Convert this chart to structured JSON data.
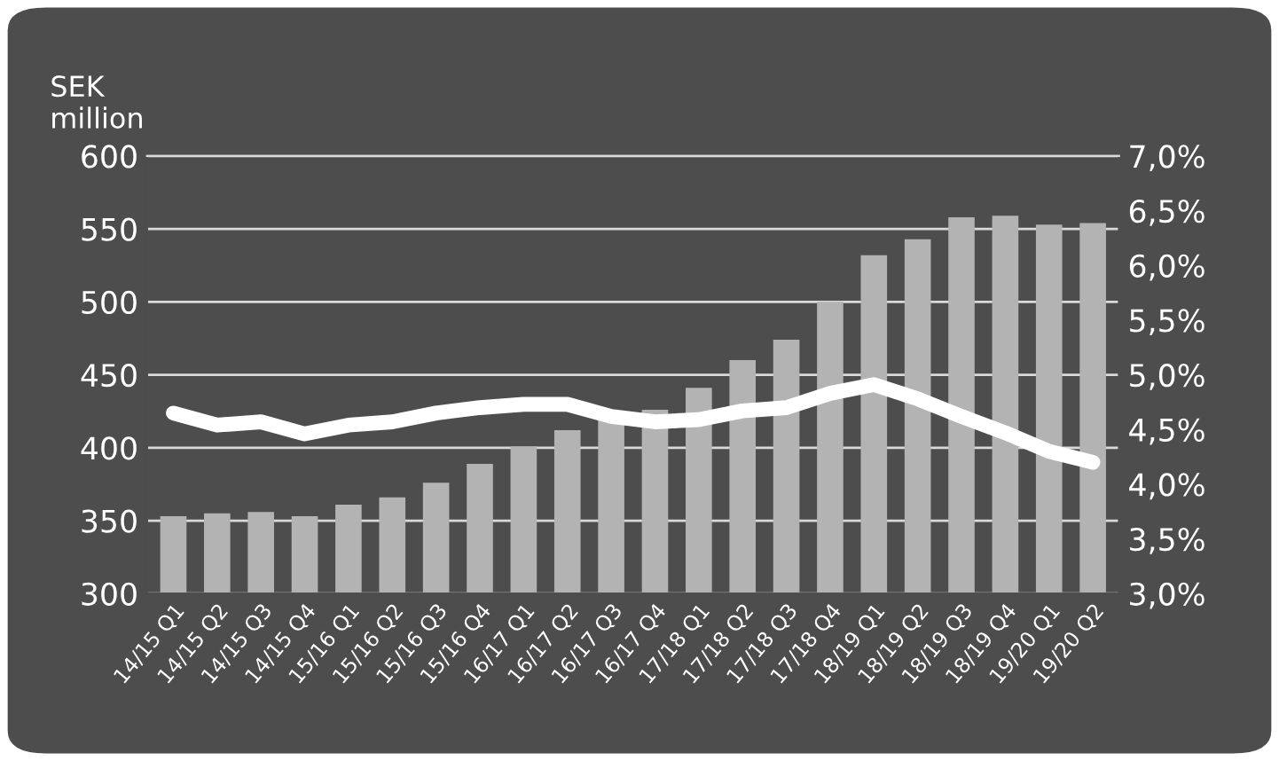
{
  "chart_data": {
    "type": "bar",
    "ylabel": "SEK\nmillion",
    "categories": [
      "14/15 Q1",
      "14/15 Q2",
      "14/15 Q3",
      "14/15 Q4",
      "15/16 Q1",
      "15/16 Q2",
      "15/16 Q3",
      "15/16 Q4",
      "16/17 Q1",
      "16/17 Q2",
      "16/17 Q3",
      "16/17 Q4",
      "17/18 Q1",
      "17/18 Q2",
      "17/18 Q3",
      "17/18 Q4",
      "18/19 Q1",
      "18/19 Q2",
      "18/19 Q3",
      "18/19 Q4",
      "19/20 Q1",
      "19/20 Q2"
    ],
    "series": [
      {
        "color": "#b3b3b3",
        "values": [
          353,
          355,
          356,
          353,
          361,
          366,
          376,
          389,
          401,
          412,
          420,
          426,
          441,
          460,
          474,
          500,
          532,
          543,
          558,
          559,
          553,
          554
        ]
      },
      {
        "type": "line",
        "axis": "y2",
        "color": "#ffffff",
        "values": [
          4.65,
          4.54,
          4.57,
          4.46,
          4.54,
          4.57,
          4.65,
          4.7,
          4.73,
          4.73,
          4.62,
          4.57,
          4.59,
          4.67,
          4.7,
          4.83,
          4.91,
          4.78,
          4.62,
          4.47,
          4.3,
          4.2
        ]
      }
    ],
    "ylim": [
      300,
      600
    ],
    "yticks": [
      300,
      350,
      400,
      450,
      500,
      550,
      600
    ],
    "y2lim": [
      3.0,
      7.0
    ],
    "y2ticks": [
      {
        "value": 3.0,
        "label": "3,0%"
      },
      {
        "value": 3.5,
        "label": "3,5%"
      },
      {
        "value": 4.0,
        "label": "4,0%"
      },
      {
        "value": 4.5,
        "label": "4,5%"
      },
      {
        "value": 5.0,
        "label": "5,0%"
      },
      {
        "value": 5.5,
        "label": "5,5%"
      },
      {
        "value": 6.0,
        "label": "6,0%"
      },
      {
        "value": 6.5,
        "label": "6,5%"
      },
      {
        "value": 7.0,
        "label": "7,0%"
      }
    ],
    "grid": "y"
  }
}
